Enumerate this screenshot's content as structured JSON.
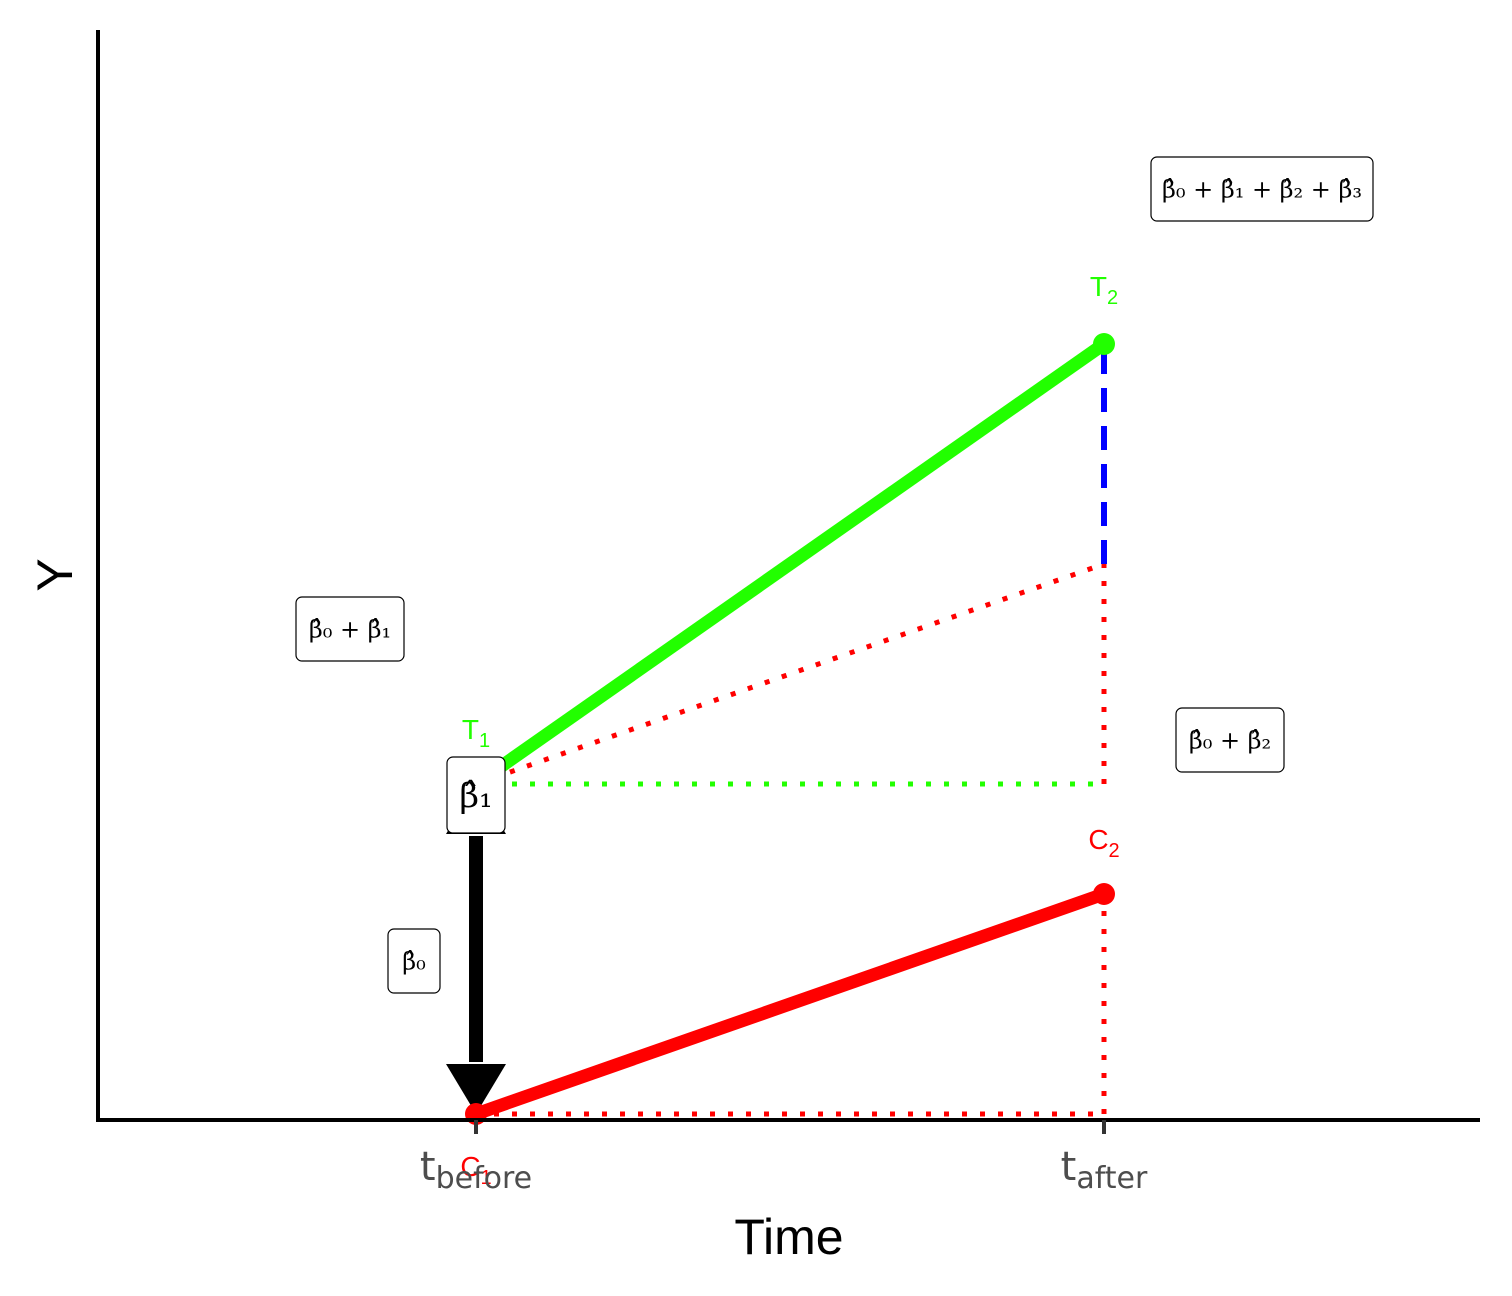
{
  "chart_data": {
    "type": "line",
    "x_categories": [
      {
        "base": "t",
        "sub": "before"
      },
      {
        "base": "t",
        "sub": "after"
      }
    ],
    "xlabel": "Time",
    "ylabel": "Y",
    "ylim": [
      0,
      10
    ],
    "series": [
      {
        "key": "treatment",
        "color": "#22ff00",
        "points": [
          {
            "x": 0,
            "y": 4.6,
            "label": "T",
            "sub": "1"
          },
          {
            "x": 1,
            "y": 8.6,
            "label": "T",
            "sub": "2"
          }
        ]
      },
      {
        "key": "control",
        "color": "#ff0000",
        "points": [
          {
            "x": 0,
            "y": 1.6,
            "label": "C",
            "sub": "1"
          },
          {
            "x": 1,
            "y": 3.6,
            "label": "C",
            "sub": "2"
          }
        ]
      }
    ],
    "counterfactual_y": 6.6,
    "colors": {
      "treatment": "#22ff00",
      "control": "#ff0000",
      "did": "#0000ff",
      "arrow": "#000000"
    },
    "annotations": [
      {
        "key": "b0",
        "text": "β̂₀"
      },
      {
        "key": "b0b1",
        "text": "β̂₀ + β̂₁"
      },
      {
        "key": "b0b2",
        "text": "β̂₀ + β̂₂"
      },
      {
        "key": "b0b1b2b3",
        "text": "β̂₀ + β̂₁ + β̂₂ + β̂₃"
      },
      {
        "key": "b1",
        "text": "β̂₁"
      }
    ]
  }
}
